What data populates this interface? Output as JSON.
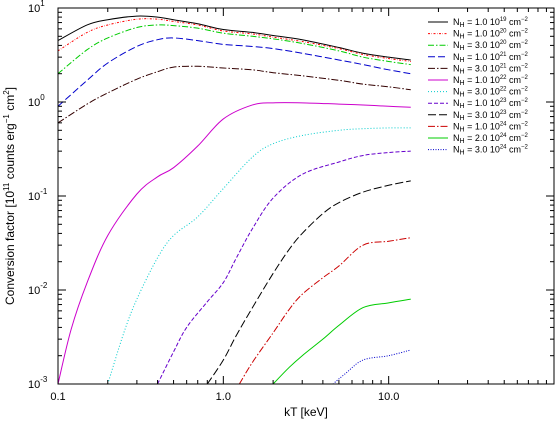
{
  "chart_data": {
    "type": "line",
    "title": "",
    "xlabel": "kT [keV]",
    "ylabel": {
      "main": "Conversion factor [10",
      "exp1": "11",
      "mid": " counts erg",
      "exp2": "−1",
      "mid2": " cm",
      "exp3": "2",
      "end": "]"
    },
    "xscale": "log",
    "yscale": "log",
    "xlim": [
      0.1,
      100
    ],
    "ylim": [
      0.001,
      10
    ],
    "grid": false,
    "legend_position": "top-right",
    "x_ticks": [
      {
        "value": 0.1,
        "label": "0.1"
      },
      {
        "value": 1.0,
        "label": "1.0"
      },
      {
        "value": 10.0,
        "label": "10.0"
      }
    ],
    "y_ticks": [
      {
        "value": 0.001,
        "base": "10",
        "exp": "-3"
      },
      {
        "value": 0.01,
        "base": "10",
        "exp": "-2"
      },
      {
        "value": 0.1,
        "base": "10",
        "exp": "-1"
      },
      {
        "value": 1,
        "base": "10",
        "exp": "0"
      },
      {
        "value": 10,
        "base": "10",
        "exp": "1"
      }
    ],
    "series": [
      {
        "name": "N_H = 1.0 10^19 cm^-2",
        "nh_prefix": "N",
        "nh_sub": "H",
        "nh_coef": " = 1.0 10",
        "nh_exp": "19",
        "unit": " cm",
        "unit_exp": "−2",
        "color": "#000000",
        "dash": "",
        "x": [
          0.1,
          0.15,
          0.2,
          0.3,
          0.4,
          0.5,
          0.7,
          1.0,
          1.5,
          2.0,
          3.0,
          5.0,
          7.0,
          10.0,
          13.6
        ],
        "y": [
          4.5,
          6.6,
          7.5,
          8.2,
          8.0,
          7.5,
          6.8,
          5.9,
          5.5,
          5.1,
          4.6,
          3.8,
          3.3,
          3.0,
          2.8
        ]
      },
      {
        "name": "N_H = 1.0 10^20 cm^-2",
        "nh_prefix": "N",
        "nh_sub": "H",
        "nh_coef": " = 1.0 10",
        "nh_exp": "20",
        "unit": " cm",
        "unit_exp": "−2",
        "color": "#ff0000",
        "dash": "2,1.5,0.5,1.5",
        "x": [
          0.1,
          0.15,
          0.2,
          0.3,
          0.4,
          0.5,
          0.7,
          1.0,
          1.5,
          2.0,
          3.0,
          5.0,
          7.0,
          10.0,
          13.6
        ],
        "y": [
          3.5,
          5.5,
          6.6,
          7.6,
          7.6,
          7.2,
          6.6,
          5.7,
          5.3,
          4.9,
          4.4,
          3.7,
          3.2,
          2.9,
          2.7
        ]
      },
      {
        "name": "N_H = 3.0 10^20 cm^-2",
        "nh_prefix": "N",
        "nh_sub": "H",
        "nh_coef": " = 3.0 10",
        "nh_exp": "20",
        "unit": " cm",
        "unit_exp": "−2",
        "color": "#00cc00",
        "dash": "6,2,1.5,2",
        "x": [
          0.1,
          0.15,
          0.2,
          0.3,
          0.4,
          0.5,
          0.7,
          1.0,
          1.5,
          2.0,
          3.0,
          5.0,
          7.0,
          10.0,
          13.6
        ],
        "y": [
          2.0,
          3.6,
          4.8,
          6.2,
          6.6,
          6.5,
          6.1,
          5.4,
          5.0,
          4.7,
          4.2,
          3.5,
          3.0,
          2.7,
          2.5
        ]
      },
      {
        "name": "N_H = 1.0 10^21 cm^-2",
        "nh_prefix": "N",
        "nh_sub": "H",
        "nh_coef": " = 1.0 10",
        "nh_exp": "21",
        "unit": " cm",
        "unit_exp": "−2",
        "color": "#0000cc",
        "dash": "7,3",
        "x": [
          0.1,
          0.15,
          0.2,
          0.3,
          0.4,
          0.5,
          0.7,
          1.0,
          1.5,
          2.0,
          3.0,
          5.0,
          7.0,
          10.0,
          13.6
        ],
        "y": [
          0.9,
          1.7,
          2.6,
          3.9,
          4.6,
          4.8,
          4.5,
          4.1,
          3.9,
          3.7,
          3.3,
          2.8,
          2.5,
          2.2,
          2.0
        ]
      },
      {
        "name": "N_H = 3.0 10^21 cm^-2",
        "nh_prefix": "N",
        "nh_sub": "H",
        "nh_coef": " = 3.0 10",
        "nh_exp": "21",
        "unit": " cm",
        "unit_exp": "−2",
        "color": "#330000",
        "dash": "7,2,1.5,2",
        "x": [
          0.1,
          0.15,
          0.2,
          0.3,
          0.4,
          0.5,
          0.7,
          1.0,
          1.5,
          2.0,
          3.0,
          5.0,
          7.0,
          10.0,
          13.6
        ],
        "y": [
          0.6,
          0.95,
          1.25,
          1.75,
          2.1,
          2.35,
          2.4,
          2.3,
          2.2,
          2.05,
          1.9,
          1.7,
          1.55,
          1.45,
          1.35
        ]
      },
      {
        "name": "N_H = 1.0 10^22 cm^-2",
        "nh_prefix": "N",
        "nh_sub": "H",
        "nh_coef": " = 1.0 10",
        "nh_exp": "22",
        "unit": " cm",
        "unit_exp": "−2",
        "color": "#cc00cc",
        "dash": "",
        "x": [
          0.1,
          0.12,
          0.15,
          0.2,
          0.3,
          0.4,
          0.5,
          0.7,
          1.0,
          1.5,
          2.0,
          3.0,
          5.0,
          7.0,
          10.0,
          13.6
        ],
        "y": [
          0.001,
          0.0038,
          0.012,
          0.038,
          0.105,
          0.16,
          0.2,
          0.34,
          0.66,
          0.93,
          0.98,
          0.98,
          0.95,
          0.93,
          0.9,
          0.88
        ]
      },
      {
        "name": "N_H = 3.0 10^22 cm^-2",
        "nh_prefix": "N",
        "nh_sub": "H",
        "nh_coef": " = 3.0 10",
        "nh_exp": "22",
        "unit": " cm",
        "unit_exp": "−2",
        "color": "#00cccc",
        "dash": "1,2",
        "x": [
          0.2,
          0.25,
          0.3,
          0.4,
          0.5,
          0.7,
          1.0,
          1.5,
          2.0,
          3.0,
          5.0,
          7.0,
          10.0,
          13.6
        ],
        "y": [
          0.001,
          0.0035,
          0.008,
          0.022,
          0.038,
          0.06,
          0.12,
          0.26,
          0.36,
          0.44,
          0.5,
          0.52,
          0.53,
          0.53
        ]
      },
      {
        "name": "N_H = 1.0 10^23 cm^-2",
        "nh_prefix": "N",
        "nh_sub": "H",
        "nh_coef": " = 1.0 10",
        "nh_exp": "23",
        "unit": " cm",
        "unit_exp": "−2",
        "color": "#6600cc",
        "dash": "4,2",
        "x": [
          0.4,
          0.5,
          0.6,
          0.8,
          1.0,
          1.2,
          1.5,
          2.0,
          3.0,
          5.0,
          7.0,
          10.0,
          13.6
        ],
        "y": [
          0.001,
          0.0022,
          0.004,
          0.0075,
          0.012,
          0.022,
          0.045,
          0.095,
          0.17,
          0.23,
          0.27,
          0.29,
          0.3
        ]
      },
      {
        "name": "N_H = 3.0 10^23 cm^-2",
        "nh_prefix": "N",
        "nh_sub": "H",
        "nh_coef": " = 3.0 10",
        "nh_exp": "23",
        "unit": " cm",
        "unit_exp": "−2",
        "color": "#000000",
        "dash": "8,3",
        "x": [
          0.8,
          1.0,
          1.2,
          1.5,
          2.0,
          2.5,
          3.0,
          4.0,
          5.0,
          7.0,
          10.0,
          13.6
        ],
        "y": [
          0.001,
          0.0018,
          0.0033,
          0.0065,
          0.015,
          0.027,
          0.04,
          0.065,
          0.085,
          0.11,
          0.13,
          0.145
        ]
      },
      {
        "name": "N_H = 1.0 10^24 cm^-2",
        "nh_prefix": "N",
        "nh_sub": "H",
        "nh_coef": " = 1.0 10",
        "nh_exp": "24",
        "unit": " cm",
        "unit_exp": "−2",
        "color": "#cc0000",
        "dash": "7,2,1.5,2",
        "x": [
          1.25,
          1.5,
          2.0,
          2.5,
          3.0,
          4.0,
          5.0,
          7.0,
          10.0,
          13.6
        ],
        "y": [
          0.001,
          0.0017,
          0.0035,
          0.0062,
          0.009,
          0.0135,
          0.018,
          0.03,
          0.033,
          0.036
        ]
      },
      {
        "name": "N_H = 2.0 10^24 cm^-2",
        "nh_prefix": "N",
        "nh_sub": "H",
        "nh_coef": " = 2.0 10",
        "nh_exp": "24",
        "unit": " cm",
        "unit_exp": "−2",
        "color": "#00cc00",
        "dash": "",
        "x": [
          2.0,
          2.5,
          3.0,
          4.0,
          5.0,
          7.0,
          10.0,
          13.6
        ],
        "y": [
          0.001,
          0.0015,
          0.002,
          0.003,
          0.0042,
          0.0065,
          0.0073,
          0.008
        ]
      },
      {
        "name": "N_H = 3.0 10^24 cm^-2",
        "nh_prefix": "N",
        "nh_sub": "H",
        "nh_coef": " = 3.0 10",
        "nh_exp": "24",
        "unit": " cm",
        "unit_exp": "−2",
        "color": "#0000cc",
        "dash": "1,1.5",
        "x": [
          4.6,
          5.5,
          7.0,
          10.0,
          13.6
        ],
        "y": [
          0.001,
          0.0013,
          0.0018,
          0.002,
          0.0023
        ]
      }
    ]
  }
}
